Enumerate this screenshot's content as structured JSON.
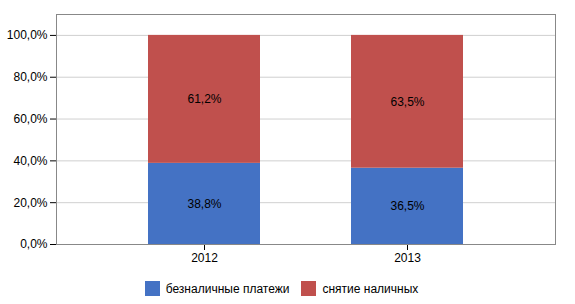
{
  "chart_data": {
    "type": "bar",
    "stacked": true,
    "categories": [
      "2012",
      "2013"
    ],
    "series": [
      {
        "name": "безналичные платежи",
        "color": "#4472C4",
        "values": [
          38.8,
          36.5
        ],
        "value_labels": [
          "38,8%",
          "36,5%"
        ]
      },
      {
        "name": "снятие наличных",
        "color": "#C0504D",
        "values": [
          61.2,
          63.5
        ],
        "value_labels": [
          "61,2%",
          "63,5%"
        ]
      }
    ],
    "ylim": [
      0,
      110
    ],
    "yticks": [
      {
        "value": 0,
        "label": "0,0%"
      },
      {
        "value": 20,
        "label": "20,0%"
      },
      {
        "value": 40,
        "label": "40,0%"
      },
      {
        "value": 60,
        "label": "60,0%"
      },
      {
        "value": 80,
        "label": "80,0%"
      },
      {
        "value": 100,
        "label": "100,0%"
      }
    ],
    "grid": true,
    "legend": "bottom",
    "data_labels": true
  }
}
